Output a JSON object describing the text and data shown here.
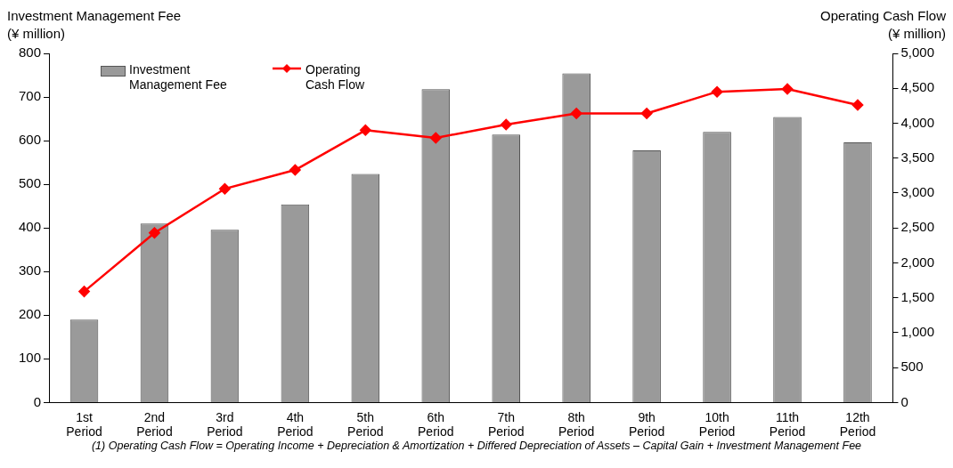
{
  "chart_data": {
    "type": "bar",
    "ylabel": "Investment Management Fee\n(¥ million)",
    "y2label": "Operating Cash Flow\n(¥ million)",
    "categories": [
      "1st Period",
      "2nd Period",
      "3rd Period",
      "4th Period",
      "5th Period",
      "6th Period",
      "7th Period",
      "8th Period",
      "9th Period",
      "10th Period",
      "11th Period",
      "12th Period"
    ],
    "series": [
      {
        "name": "Investment Management Fee",
        "color": "#9a9a9a",
        "values": [
          190,
          410,
          396,
          454,
          524,
          718,
          614,
          754,
          578,
          620,
          654,
          596
        ]
      },
      {
        "name": "Operating Cash Flow",
        "type": "line",
        "axis": "y2",
        "color": "#ff0000",
        "marker": "diamond",
        "values": [
          1590,
          2430,
          3060,
          3330,
          3900,
          3790,
          3980,
          4140,
          4140,
          4450,
          4490,
          4260
        ]
      }
    ],
    "ylim": [
      0,
      800
    ],
    "yticks": [
      0,
      100,
      200,
      300,
      400,
      500,
      600,
      700,
      800
    ],
    "y2lim": [
      0,
      5000
    ],
    "y2ticks": [
      0,
      {
        "value": 500,
        "label": "500"
      },
      {
        "value": 1000,
        "label": "1,000"
      },
      {
        "value": 1500,
        "label": "1,500"
      },
      {
        "value": 2000,
        "label": "2,000"
      },
      {
        "value": 2500,
        "label": "2,500"
      },
      {
        "value": 3000,
        "label": "3,000"
      },
      {
        "value": 3500,
        "label": "3,500"
      },
      {
        "value": 4000,
        "label": "4,000"
      },
      {
        "value": 4500,
        "label": "4,500"
      },
      {
        "value": 5000,
        "label": "5,000"
      }
    ],
    "grid": false,
    "legend": "top left",
    "annotations": [
      "(1) Operating Cash Flow = Operating Income + Depreciation & Amortization + Differed Depreciation of Assets – Capital Gain + Investment Management Fee"
    ]
  }
}
